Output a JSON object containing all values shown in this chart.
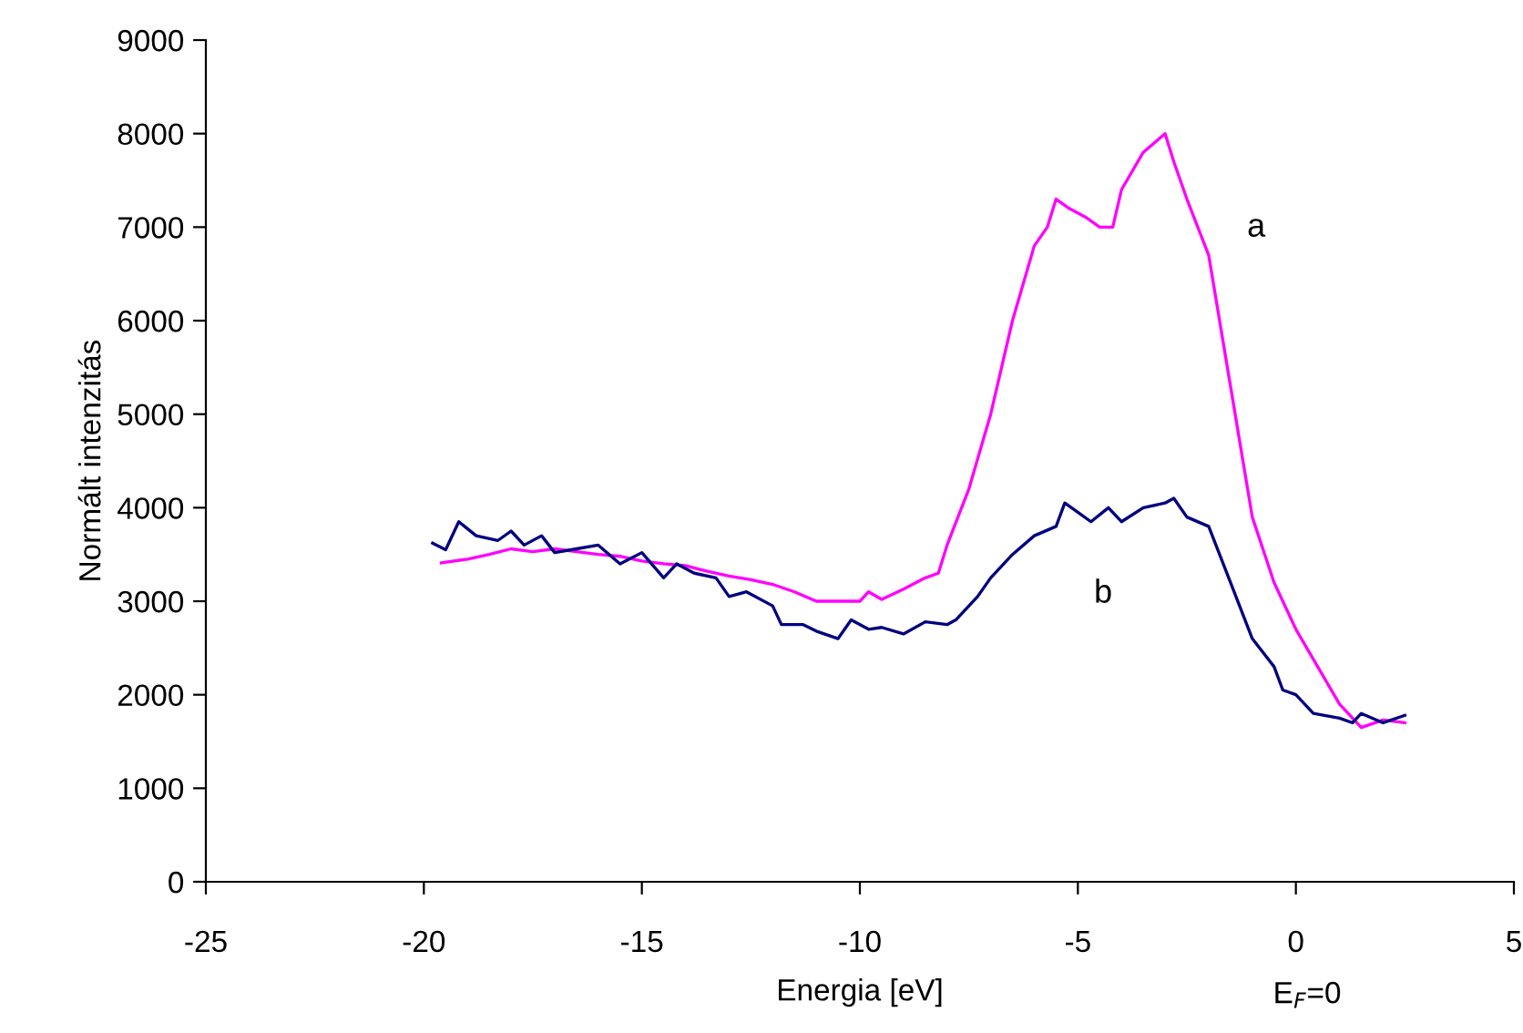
{
  "chart_data": {
    "type": "line",
    "xlabel": "Energia [eV]",
    "ylabel": "Normált intenzitás",
    "xlim": [
      -25,
      5
    ],
    "xticks": [
      -25,
      -20,
      -15,
      -10,
      -5,
      0,
      5
    ],
    "ylim": [
      0,
      9000
    ],
    "yticks": [
      0,
      1000,
      2000,
      3000,
      4000,
      5000,
      6000,
      7000,
      8000,
      9000
    ],
    "grid": false,
    "legend": false,
    "marker": "none",
    "line_style": "solid",
    "annotations": [
      "a",
      "b",
      "E$_{F}$=0"
    ],
    "series": [
      {
        "color": "#ff00ff",
        "x": [
          -19.6,
          -19,
          -18.5,
          -18,
          -17.5,
          -17,
          -16.5,
          -16,
          -15.5,
          -15,
          -14.5,
          -14,
          -13.5,
          -13,
          -12.5,
          -12,
          -11.5,
          -11,
          -10.5,
          -10,
          -9.8,
          -9.5,
          -9,
          -8.5,
          -8.2,
          -8,
          -7.5,
          -7,
          -6.5,
          -6,
          -5.7,
          -5.5,
          -5.2,
          -4.8,
          -4.5,
          -4.2,
          -4,
          -3.5,
          -3,
          -2.8,
          -2.5,
          -2,
          -1.5,
          -1,
          -0.5,
          0,
          0.5,
          1,
          1.5,
          2,
          2.5
        ],
        "values": [
          3410,
          3450,
          3500,
          3560,
          3530,
          3560,
          3530,
          3500,
          3480,
          3430,
          3400,
          3380,
          3320,
          3270,
          3230,
          3180,
          3100,
          3000,
          3000,
          3000,
          3100,
          3020,
          3130,
          3250,
          3300,
          3600,
          4200,
          5000,
          6000,
          6800,
          7000,
          7300,
          7200,
          7100,
          7000,
          7000,
          7400,
          7800,
          8000,
          7700,
          7300,
          6700,
          5300,
          3900,
          3200,
          2700,
          2300,
          1900,
          1650,
          1730,
          1700
        ]
      },
      {
        "color": "#000080",
        "x": [
          -19.8,
          -19.5,
          -19.2,
          -18.8,
          -18.3,
          -18,
          -17.7,
          -17.3,
          -17,
          -16.5,
          -16,
          -15.5,
          -15,
          -14.5,
          -14.2,
          -13.8,
          -13.3,
          -13,
          -12.6,
          -12,
          -11.8,
          -11.3,
          -11,
          -10.5,
          -10.2,
          -9.8,
          -9.5,
          -9,
          -8.5,
          -8,
          -7.8,
          -7.3,
          -7,
          -6.5,
          -6,
          -5.5,
          -5.3,
          -5,
          -4.7,
          -4.3,
          -4,
          -3.5,
          -3,
          -2.8,
          -2.5,
          -2,
          -1.5,
          -1,
          -0.5,
          -0.3,
          0,
          0.4,
          1,
          1.3,
          1.5,
          2,
          2.5
        ],
        "values": [
          3620,
          3550,
          3850,
          3700,
          3650,
          3750,
          3600,
          3700,
          3520,
          3560,
          3600,
          3400,
          3520,
          3250,
          3400,
          3300,
          3250,
          3050,
          3100,
          2950,
          2750,
          2750,
          2680,
          2600,
          2800,
          2700,
          2720,
          2650,
          2780,
          2750,
          2800,
          3050,
          3250,
          3500,
          3700,
          3800,
          4050,
          3950,
          3850,
          4000,
          3850,
          4000,
          4050,
          4100,
          3900,
          3800,
          3200,
          2600,
          2300,
          2050,
          2000,
          1800,
          1750,
          1700,
          1800,
          1700,
          1780
        ]
      }
    ]
  }
}
